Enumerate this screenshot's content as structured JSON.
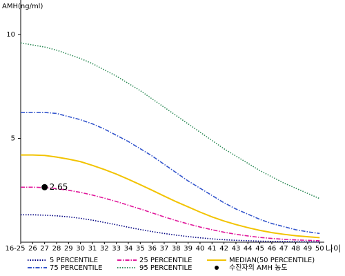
{
  "chart_data": {
    "type": "line",
    "y_label": "AMH(ng/ml)",
    "x_label": "나이",
    "categories": [
      "16-25",
      "26",
      "27",
      "28",
      "29",
      "30",
      "31",
      "32",
      "33",
      "34",
      "35",
      "36",
      "37",
      "38",
      "39",
      "40",
      "41",
      "42",
      "43",
      "44",
      "45",
      "46",
      "47",
      "48",
      "49",
      "50"
    ],
    "ylim": [
      0,
      11.5
    ],
    "yticks": [
      5,
      10
    ],
    "series": [
      {
        "name": "5 PERCENTILE",
        "color": "#000080",
        "dash": "dot",
        "values": [
          1.32,
          1.32,
          1.3,
          1.27,
          1.22,
          1.15,
          1.06,
          0.95,
          0.84,
          0.72,
          0.61,
          0.51,
          0.42,
          0.34,
          0.27,
          0.21,
          0.16,
          0.12,
          0.09,
          0.07,
          0.05,
          0.04,
          0.03,
          0.02,
          0.02,
          0.01
        ]
      },
      {
        "name": "75 PERCENTILE",
        "color": "#3355cc",
        "dash": "dashdot",
        "values": [
          6.25,
          6.25,
          6.25,
          6.2,
          6.05,
          5.9,
          5.7,
          5.45,
          5.15,
          4.85,
          4.5,
          4.15,
          3.75,
          3.35,
          2.95,
          2.6,
          2.25,
          1.9,
          1.6,
          1.35,
          1.1,
          0.9,
          0.75,
          0.6,
          0.5,
          0.42
        ]
      },
      {
        "name": "25 PERCENTILE",
        "color": "#e0169a",
        "dash": "dashdot",
        "values": [
          2.65,
          2.65,
          2.63,
          2.58,
          2.5,
          2.4,
          2.27,
          2.12,
          1.96,
          1.78,
          1.6,
          1.41,
          1.22,
          1.04,
          0.88,
          0.73,
          0.6,
          0.48,
          0.38,
          0.3,
          0.23,
          0.18,
          0.14,
          0.11,
          0.09,
          0.07
        ]
      },
      {
        "name": "95 PERCENTILE",
        "color": "#2e8b57",
        "dash": "dot",
        "values": [
          9.6,
          9.5,
          9.4,
          9.25,
          9.05,
          8.85,
          8.6,
          8.3,
          8.0,
          7.65,
          7.3,
          6.9,
          6.5,
          6.1,
          5.7,
          5.3,
          4.9,
          4.5,
          4.15,
          3.8,
          3.45,
          3.15,
          2.85,
          2.6,
          2.35,
          2.1
        ]
      },
      {
        "name": "MEDIAN(50 PERCENTILE)",
        "color": "#f2c300",
        "dash": "solid",
        "values": [
          4.2,
          4.2,
          4.18,
          4.1,
          4.0,
          3.88,
          3.7,
          3.5,
          3.28,
          3.03,
          2.77,
          2.5,
          2.22,
          1.95,
          1.7,
          1.45,
          1.22,
          1.02,
          0.85,
          0.7,
          0.57,
          0.46,
          0.38,
          0.31,
          0.26,
          0.22
        ]
      }
    ],
    "marker": {
      "name": "수진자의 AMH 농도",
      "category": "27",
      "value": 2.65,
      "color": "#000000"
    }
  }
}
